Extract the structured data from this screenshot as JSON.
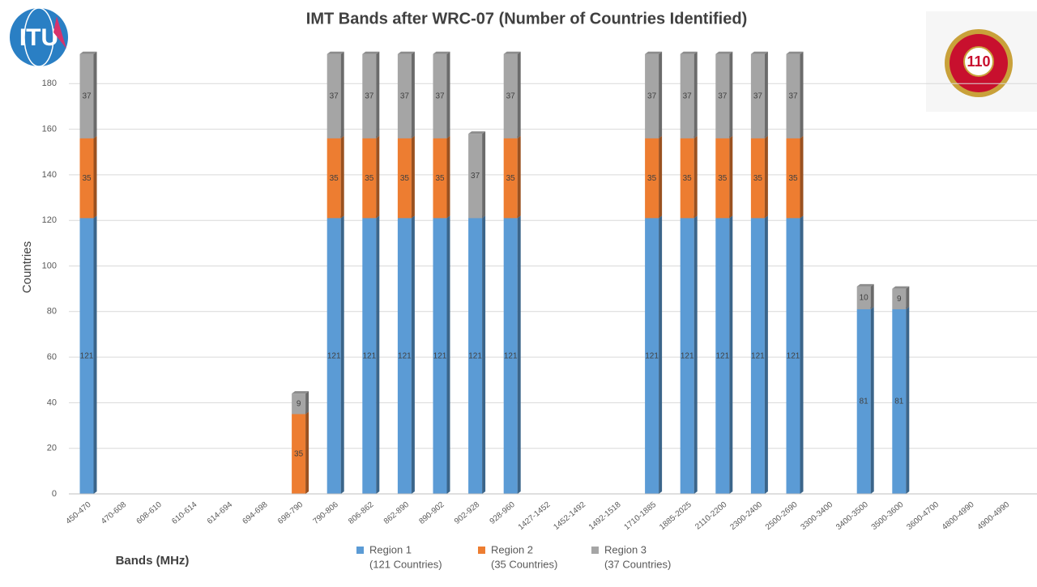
{
  "chart_data": {
    "type": "bar",
    "stacked": true,
    "title": "IMT Bands after WRC-07 (Number of Countries Identified)",
    "x_label": "Bands (MHz)",
    "y_label": "Countries",
    "logos": [
      "ITU",
      "110"
    ],
    "categories": [
      "450-470",
      "470-608",
      "608-610",
      "610-614",
      "614-694",
      "694-698",
      "698-790",
      "790-806",
      "806-862",
      "862-890",
      "890-902",
      "902-928",
      "928-960",
      "1427-1452",
      "1452-1492",
      "1492-1518",
      "1710-1885",
      "1885-2025",
      "2110-2200",
      "2300-2400",
      "2500-2690",
      "3300-3400",
      "3400-3500",
      "3500-3600",
      "3600-4700",
      "4800-4990",
      "4900-4990"
    ],
    "series": [
      {
        "name": "Region 1",
        "note": "(121 Countries)",
        "color": "#5b9bd5",
        "values": [
          121,
          null,
          null,
          null,
          null,
          null,
          null,
          121,
          121,
          121,
          121,
          121,
          121,
          null,
          null,
          null,
          121,
          121,
          121,
          121,
          121,
          null,
          81,
          81,
          null,
          null,
          null
        ]
      },
      {
        "name": "Region 2",
        "note": "(35 Countries)",
        "color": "#ed7d31",
        "values": [
          35,
          null,
          null,
          null,
          null,
          null,
          35,
          35,
          35,
          35,
          35,
          null,
          35,
          null,
          null,
          null,
          35,
          35,
          35,
          35,
          35,
          null,
          null,
          null,
          null,
          null,
          null
        ]
      },
      {
        "name": "Region 3",
        "note": "(37 Countries)",
        "color": "#a5a5a5",
        "values": [
          37,
          null,
          null,
          null,
          null,
          null,
          9,
          37,
          37,
          37,
          37,
          37,
          37,
          null,
          null,
          null,
          37,
          37,
          37,
          37,
          37,
          null,
          10,
          9,
          null,
          null,
          null
        ]
      }
    ],
    "ylim": [
      0,
      200
    ],
    "yticks": [
      0,
      20,
      40,
      60,
      80,
      100,
      120,
      140,
      160,
      180
    ],
    "grid": true
  }
}
